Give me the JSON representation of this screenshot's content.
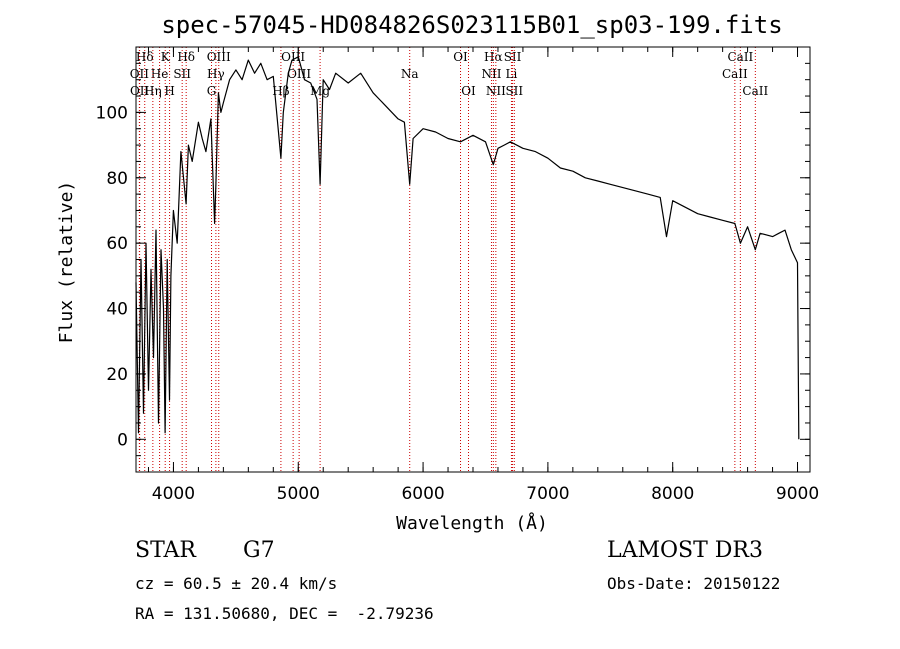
{
  "chart_data": {
    "type": "line",
    "title": "spec-57045-HD084826S023115B01_sp03-199.fits",
    "xlabel": "Wavelength (Å)",
    "ylabel": "Flux (relative)",
    "xlim": [
      3700,
      9100
    ],
    "ylim": [
      -10,
      120
    ],
    "x_ticks": [
      "4000",
      "5000",
      "6000",
      "7000",
      "8000",
      "9000"
    ],
    "y_ticks": [
      "0",
      "20",
      "40",
      "60",
      "80",
      "100"
    ],
    "grid": false,
    "series": [
      {
        "x": [
          3700,
          3720,
          3740,
          3760,
          3780,
          3800,
          3820,
          3840,
          3860,
          3880,
          3900,
          3920,
          3933,
          3950,
          3968,
          3980,
          4000,
          4030,
          4060,
          4101,
          4120,
          4150,
          4200,
          4230,
          4260,
          4300,
          4330,
          4340,
          4360,
          4380,
          4400,
          4450,
          4500,
          4550,
          4600,
          4650,
          4700,
          4750,
          4800,
          4861,
          4880,
          4920,
          4950,
          5000,
          5050,
          5100,
          5150,
          5175,
          5200,
          5250,
          5300,
          5400,
          5500,
          5600,
          5700,
          5800,
          5850,
          5893,
          5920,
          6000,
          6100,
          6200,
          6300,
          6400,
          6500,
          6563,
          6600,
          6650,
          6700,
          6800,
          6900,
          7000,
          7100,
          7200,
          7300,
          7400,
          7500,
          7600,
          7700,
          7800,
          7900,
          7950,
          8000,
          8100,
          8200,
          8300,
          8400,
          8498,
          8542,
          8600,
          8662,
          8700,
          8800,
          8850,
          8900,
          8950,
          9000,
          9010
        ],
        "y": [
          48,
          2,
          55,
          8,
          60,
          15,
          52,
          25,
          64,
          5,
          58,
          40,
          2,
          55,
          12,
          50,
          70,
          60,
          88,
          72,
          90,
          85,
          97,
          92,
          88,
          98,
          66,
          78,
          106,
          100,
          103,
          110,
          113,
          110,
          116,
          112,
          115,
          110,
          111,
          86,
          100,
          112,
          116,
          117,
          110,
          109,
          104,
          78,
          110,
          107,
          112,
          109,
          112,
          106,
          102,
          98,
          97,
          78,
          92,
          95,
          94,
          92,
          91,
          93,
          91,
          84,
          89,
          90,
          91,
          89,
          88,
          86,
          83,
          82,
          80,
          79,
          78,
          77,
          76,
          75,
          74,
          62,
          73,
          71,
          69,
          68,
          67,
          66,
          60,
          65,
          58,
          63,
          62,
          63,
          64,
          58,
          54,
          0
        ]
      }
    ],
    "lines": [
      {
        "name": "Hδ",
        "x": 3770,
        "row": 0
      },
      {
        "name": "OII",
        "x": 3727,
        "row": 1
      },
      {
        "name": "OII",
        "x": 3729,
        "row": 2
      },
      {
        "name": "K",
        "x": 3934,
        "row": 0
      },
      {
        "name": "He",
        "x": 3889,
        "row": 1
      },
      {
        "name": "Hη",
        "x": 3835,
        "row": 2
      },
      {
        "name": "H",
        "x": 3969,
        "row": 2
      },
      {
        "name": "Hδ",
        "x": 4102,
        "row": 0
      },
      {
        "name": "SII",
        "x": 4070,
        "row": 1
      },
      {
        "name": "OIII",
        "x": 4363,
        "row": 0
      },
      {
        "name": "Hγ",
        "x": 4340,
        "row": 1
      },
      {
        "name": "G",
        "x": 4305,
        "row": 2
      },
      {
        "name": "OIII",
        "x": 4959,
        "row": 0
      },
      {
        "name": "OIII",
        "x": 5007,
        "row": 1
      },
      {
        "name": "Hβ",
        "x": 4861,
        "row": 2
      },
      {
        "name": "Mg",
        "x": 5175,
        "row": 2
      },
      {
        "name": "Na",
        "x": 5893,
        "row": 1
      },
      {
        "name": "OI",
        "x": 6300,
        "row": 0
      },
      {
        "name": "OI",
        "x": 6364,
        "row": 2
      },
      {
        "name": "Hα",
        "x": 6563,
        "row": 0
      },
      {
        "name": "NII",
        "x": 6548,
        "row": 1
      },
      {
        "name": "NII",
        "x": 6583,
        "row": 2
      },
      {
        "name": "SII",
        "x": 6717,
        "row": 0
      },
      {
        "name": "Li",
        "x": 6708,
        "row": 1
      },
      {
        "name": "SII",
        "x": 6731,
        "row": 2
      },
      {
        "name": "CaII",
        "x": 8542,
        "row": 0
      },
      {
        "name": "CaII",
        "x": 8498,
        "row": 1
      },
      {
        "name": "CaII",
        "x": 8662,
        "row": 2
      }
    ],
    "line_color": "#cc0000",
    "spectrum_color": "#000000"
  },
  "info": {
    "object_class": "STAR",
    "subclass": "G7",
    "survey": "LAMOST DR3",
    "cz": "cz = 60.5 ± 20.4 km/s",
    "obs_date": "Obs-Date: 20150122",
    "coords": "RA = 131.50680, DEC =  -2.79236"
  }
}
